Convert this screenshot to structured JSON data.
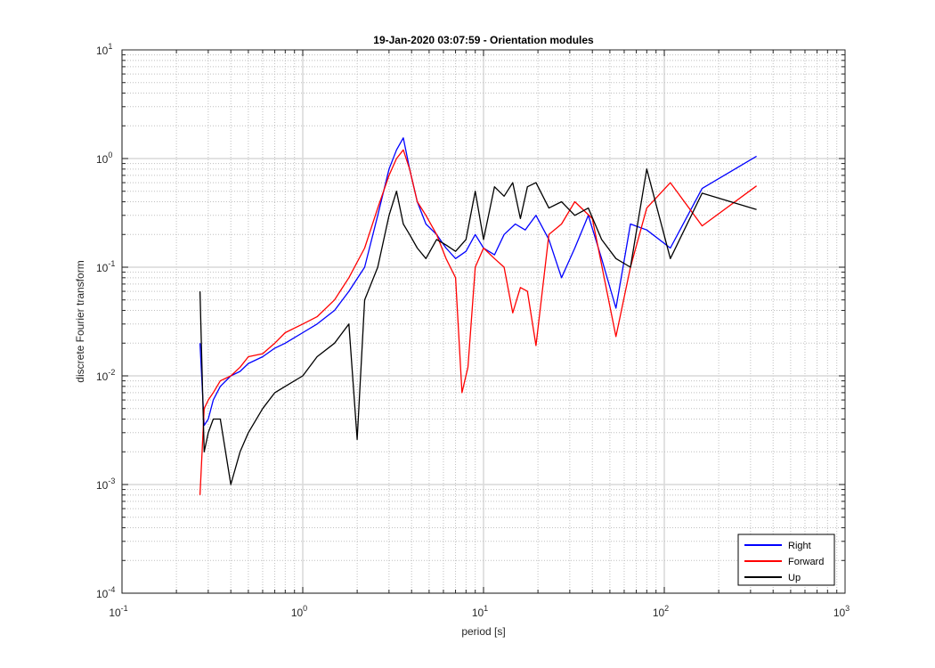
{
  "chart_data": {
    "type": "line",
    "title": "19-Jan-2020 03:07:59 - Orientation modules",
    "xlabel": "period [s]",
    "ylabel": "discrete Fourier transform",
    "xscale": "log",
    "yscale": "log",
    "xlim": [
      0.1,
      1000
    ],
    "ylim": [
      0.0001,
      10
    ],
    "xticks": [
      {
        "base": "10",
        "exp": "-1"
      },
      {
        "base": "10",
        "exp": "0"
      },
      {
        "base": "10",
        "exp": "1"
      },
      {
        "base": "10",
        "exp": "2"
      },
      {
        "base": "10",
        "exp": "3"
      }
    ],
    "yticks": [
      {
        "base": "10",
        "exp": "-4"
      },
      {
        "base": "10",
        "exp": "-3"
      },
      {
        "base": "10",
        "exp": "-2"
      },
      {
        "base": "10",
        "exp": "-1"
      },
      {
        "base": "10",
        "exp": "0"
      },
      {
        "base": "10",
        "exp": "1"
      }
    ],
    "grid": true,
    "minor_grid": true,
    "legend_position": "bottom-right",
    "series": [
      {
        "name": "Right",
        "color": "#0000ff",
        "x": [
          0.27,
          0.285,
          0.3,
          0.32,
          0.35,
          0.4,
          0.45,
          0.5,
          0.6,
          0.7,
          0.8,
          1.0,
          1.2,
          1.5,
          1.8,
          2.2,
          2.6,
          3.0,
          3.3,
          3.6,
          3.9,
          4.3,
          4.8,
          5.5,
          6.2,
          7.0,
          8.0,
          9.0,
          10.0,
          11.5,
          13.0,
          15.0,
          17.0,
          19.5,
          23.0,
          27.0,
          32.0,
          38.0,
          45.0,
          54.0,
          65.0,
          80.0,
          108.0,
          162.0,
          324.0
        ],
        "y": [
          0.02,
          0.0035,
          0.004,
          0.006,
          0.008,
          0.01,
          0.011,
          0.013,
          0.015,
          0.018,
          0.02,
          0.025,
          0.03,
          0.04,
          0.06,
          0.1,
          0.3,
          0.8,
          1.2,
          1.55,
          0.8,
          0.4,
          0.25,
          0.2,
          0.15,
          0.12,
          0.14,
          0.2,
          0.15,
          0.13,
          0.2,
          0.25,
          0.22,
          0.3,
          0.18,
          0.08,
          0.15,
          0.3,
          0.12,
          0.042,
          0.25,
          0.22,
          0.15,
          0.53,
          1.05
        ]
      },
      {
        "name": "Forward",
        "color": "#ff0000",
        "x": [
          0.27,
          0.285,
          0.3,
          0.32,
          0.35,
          0.4,
          0.45,
          0.5,
          0.6,
          0.7,
          0.8,
          1.0,
          1.2,
          1.5,
          1.8,
          2.2,
          2.6,
          3.0,
          3.3,
          3.6,
          3.9,
          4.3,
          4.8,
          5.5,
          6.2,
          7.0,
          7.6,
          8.2,
          9.0,
          10.0,
          11.5,
          13.0,
          14.5,
          16.0,
          17.5,
          19.5,
          23.0,
          27.0,
          32.0,
          40.0,
          54.0,
          65.0,
          80.0,
          108.0,
          162.0,
          324.0
        ],
        "y": [
          0.0008,
          0.005,
          0.006,
          0.007,
          0.009,
          0.01,
          0.012,
          0.015,
          0.016,
          0.02,
          0.025,
          0.03,
          0.035,
          0.05,
          0.08,
          0.15,
          0.35,
          0.7,
          1.0,
          1.2,
          0.8,
          0.4,
          0.3,
          0.2,
          0.12,
          0.08,
          0.007,
          0.012,
          0.1,
          0.15,
          0.12,
          0.1,
          0.038,
          0.065,
          0.06,
          0.019,
          0.2,
          0.25,
          0.4,
          0.28,
          0.023,
          0.1,
          0.35,
          0.6,
          0.24,
          0.56
        ]
      },
      {
        "name": "Up",
        "color": "#000000",
        "x": [
          0.27,
          0.285,
          0.3,
          0.32,
          0.35,
          0.4,
          0.45,
          0.5,
          0.6,
          0.7,
          0.8,
          1.0,
          1.2,
          1.5,
          1.8,
          2.0,
          2.2,
          2.6,
          3.0,
          3.3,
          3.6,
          3.9,
          4.3,
          4.8,
          5.5,
          6.2,
          7.0,
          8.0,
          9.0,
          10.0,
          11.5,
          13.0,
          14.5,
          16.0,
          17.5,
          19.5,
          23.0,
          27.0,
          32.0,
          38.0,
          45.0,
          54.0,
          65.0,
          80.0,
          108.0,
          162.0,
          324.0
        ],
        "y": [
          0.06,
          0.002,
          0.003,
          0.004,
          0.004,
          0.001,
          0.002,
          0.003,
          0.005,
          0.007,
          0.008,
          0.01,
          0.015,
          0.02,
          0.03,
          0.0026,
          0.05,
          0.1,
          0.3,
          0.5,
          0.25,
          0.2,
          0.15,
          0.12,
          0.18,
          0.16,
          0.14,
          0.18,
          0.5,
          0.18,
          0.55,
          0.45,
          0.6,
          0.28,
          0.55,
          0.6,
          0.35,
          0.4,
          0.3,
          0.35,
          0.18,
          0.12,
          0.1,
          0.8,
          0.12,
          0.48,
          0.34
        ]
      }
    ]
  }
}
